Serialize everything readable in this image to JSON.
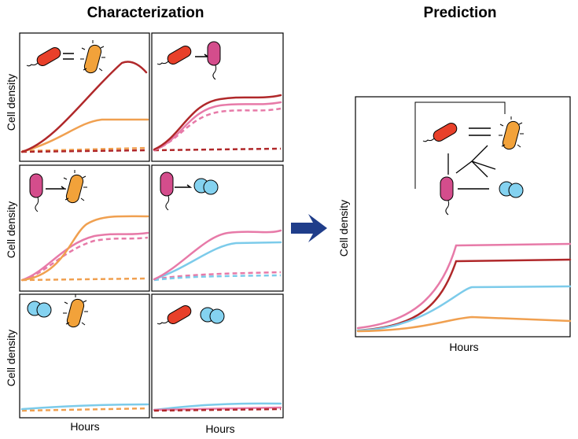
{
  "titles": {
    "left": "Characterization",
    "right": "Prediction"
  },
  "y_labels": [
    "Cell density",
    "Cell density",
    "Cell density",
    "Cell density"
  ],
  "x_labels": [
    "Hours",
    "Hours",
    "Hours"
  ]
}
